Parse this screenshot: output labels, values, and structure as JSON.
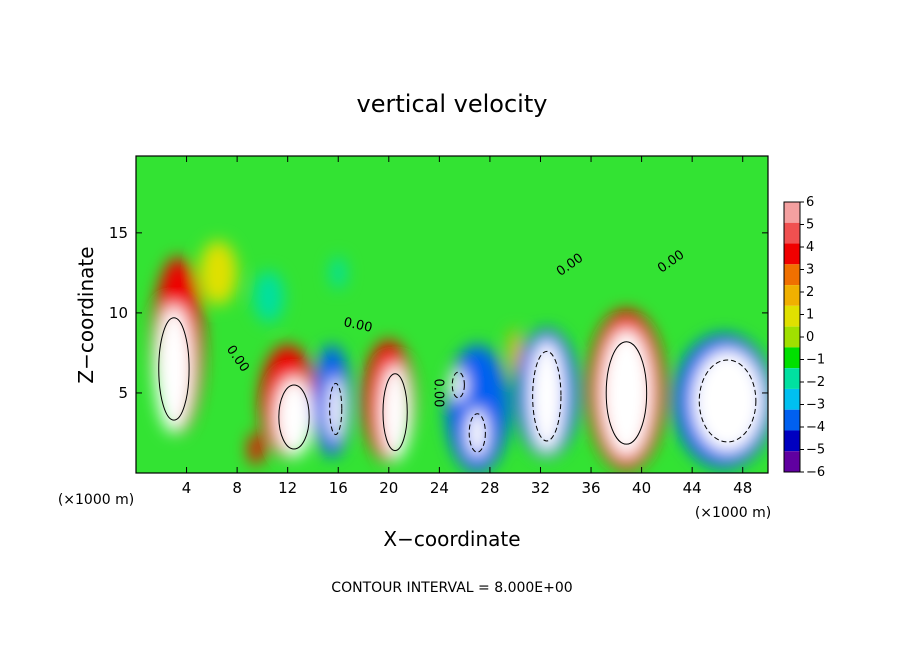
{
  "chart_data": {
    "type": "heatmap",
    "title": "vertical velocity",
    "xlabel": "X−coordinate",
    "ylabel": "Z−coordinate",
    "x_unit_left": "(×1000 m)",
    "x_unit_right": "(×1000 m)",
    "footer": "CONTOUR INTERVAL = 8.000E+00",
    "xlim": [
      0,
      50
    ],
    "ylim": [
      0,
      19.8
    ],
    "x_ticks": [
      4,
      8,
      12,
      16,
      20,
      24,
      28,
      32,
      36,
      40,
      44,
      48
    ],
    "x_tick_labels": [
      "4",
      "8",
      "12",
      "16",
      "20",
      "24",
      "28",
      "32",
      "36",
      "40",
      "44",
      "48"
    ],
    "y_ticks": [
      5,
      10,
      15
    ],
    "y_tick_labels": [
      "5",
      "10",
      "15"
    ],
    "colorbar": {
      "levels": [
        6,
        5,
        4,
        3,
        2,
        1,
        0,
        -1,
        -2,
        -3,
        -4,
        -5,
        -6
      ],
      "labels": [
        "6",
        "5",
        "4",
        "3",
        "2",
        "1",
        "0",
        "−1",
        "−2",
        "−3",
        "−4",
        "−5",
        "−6"
      ],
      "colors": [
        "#f4a0a0",
        "#f05050",
        "#f00000",
        "#f07000",
        "#f0b000",
        "#e0e000",
        "#a0e000",
        "#00e000",
        "#00e0a0",
        "#00c0f0",
        "#0060f0",
        "#0000c0",
        "#6000a0"
      ]
    },
    "contour_labels": [
      {
        "text": "0.00",
        "x": 34.5,
        "y": 12.8,
        "rotate": -35
      },
      {
        "text": "0.00",
        "x": 42.5,
        "y": 13.0,
        "rotate": -35
      },
      {
        "text": "0.00",
        "x": 17.5,
        "y": 9.0,
        "rotate": 12
      },
      {
        "text": "0.00",
        "x": 7.8,
        "y": 7.0,
        "rotate": 55
      },
      {
        "text": "0.00",
        "x": 23.6,
        "y": 5.0,
        "rotate": 90
      }
    ],
    "cells": [
      {
        "x": 3.0,
        "y": 6.5,
        "v": 6,
        "rx": 1.5,
        "ry": 4.0
      },
      {
        "x": 3.3,
        "y": 8.0,
        "v": 4,
        "rx": 2.0,
        "ry": 5.5
      },
      {
        "x": 12.5,
        "y": 3.5,
        "v": 6,
        "rx": 1.5,
        "ry": 2.5
      },
      {
        "x": 12.0,
        "y": 4.5,
        "v": 4,
        "rx": 2.2,
        "ry": 3.5
      },
      {
        "x": 20.5,
        "y": 3.8,
        "v": 6,
        "rx": 1.2,
        "ry": 3.0
      },
      {
        "x": 20.0,
        "y": 4.5,
        "v": 4,
        "rx": 2.0,
        "ry": 3.8
      },
      {
        "x": 38.8,
        "y": 5.0,
        "v": 6,
        "rx": 2.0,
        "ry": 4.0
      },
      {
        "x": 38.8,
        "y": 5.2,
        "v": 4,
        "rx": 3.0,
        "ry": 5.0
      },
      {
        "x": 9.5,
        "y": 1.5,
        "v": 4,
        "rx": 0.6,
        "ry": 1.0
      },
      {
        "x": 15.8,
        "y": 4.0,
        "v": -6,
        "rx": 0.6,
        "ry": 2.0
      },
      {
        "x": 15.5,
        "y": 4.5,
        "v": -4,
        "rx": 1.5,
        "ry": 3.5
      },
      {
        "x": 27.0,
        "y": 4.0,
        "v": -4,
        "rx": 2.5,
        "ry": 4.0
      },
      {
        "x": 27.0,
        "y": 2.5,
        "v": -6,
        "rx": 0.8,
        "ry": 1.5
      },
      {
        "x": 25.5,
        "y": 5.5,
        "v": -6,
        "rx": 0.6,
        "ry": 1.0
      },
      {
        "x": 32.5,
        "y": 4.8,
        "v": -6,
        "rx": 1.4,
        "ry": 3.5
      },
      {
        "x": 32.5,
        "y": 5.0,
        "v": -4,
        "rx": 2.5,
        "ry": 4.0
      },
      {
        "x": 46.8,
        "y": 4.5,
        "v": -6,
        "rx": 2.8,
        "ry": 3.2
      },
      {
        "x": 46.5,
        "y": 4.5,
        "v": -4,
        "rx": 4.0,
        "ry": 4.2
      },
      {
        "x": 10.5,
        "y": 11.0,
        "v": -2,
        "rx": 1.2,
        "ry": 1.6
      },
      {
        "x": 16.0,
        "y": 12.5,
        "v": -2,
        "rx": 0.6,
        "ry": 1.0
      },
      {
        "x": 6.5,
        "y": 12.5,
        "v": 0.5,
        "rx": 1.5,
        "ry": 2.0
      },
      {
        "x": 30.0,
        "y": 7.5,
        "v": 1.5,
        "rx": 0.5,
        "ry": 1.5
      }
    ]
  }
}
